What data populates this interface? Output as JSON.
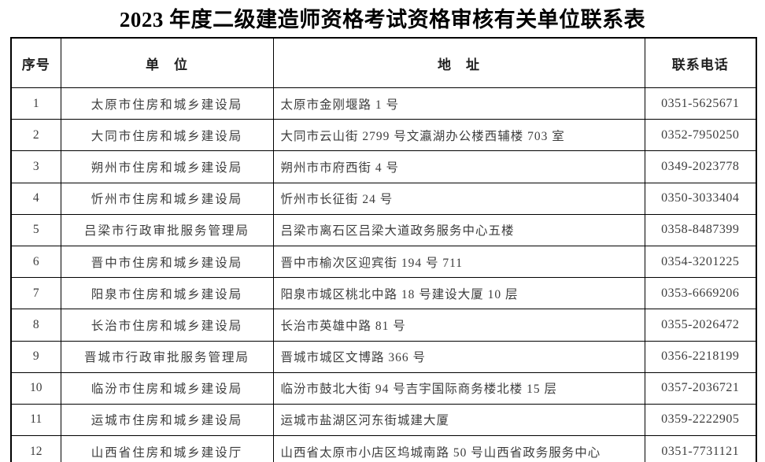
{
  "page": {
    "title": "2023 年度二级建造师资格考试资格审核有关单位联系表"
  },
  "table": {
    "headers": [
      "序号",
      "单　位",
      "地　址",
      "联系电话"
    ],
    "rows": [
      {
        "no": "1",
        "unit": "太原市住房和城乡建设局",
        "address": "太原市金刚堰路 1 号",
        "phone": "0351-5625671"
      },
      {
        "no": "2",
        "unit": "大同市住房和城乡建设局",
        "address": "大同市云山街 2799 号文瀛湖办公楼西辅楼 703 室",
        "phone": "0352-7950250"
      },
      {
        "no": "3",
        "unit": "朔州市住房和城乡建设局",
        "address": "朔州市市府西街 4 号",
        "phone": "0349-2023778"
      },
      {
        "no": "4",
        "unit": "忻州市住房和城乡建设局",
        "address": "忻州市长征街 24 号",
        "phone": "0350-3033404"
      },
      {
        "no": "5",
        "unit": "吕梁市行政审批服务管理局",
        "address": "吕梁市离石区吕梁大道政务服务中心五楼",
        "phone": "0358-8487399"
      },
      {
        "no": "6",
        "unit": "晋中市住房和城乡建设局",
        "address": "晋中市榆次区迎宾街 194 号 711",
        "phone": "0354-3201225"
      },
      {
        "no": "7",
        "unit": "阳泉市住房和城乡建设局",
        "address": "阳泉市城区桃北中路 18 号建设大厦 10 层",
        "phone": "0353-6669206"
      },
      {
        "no": "8",
        "unit": "长治市住房和城乡建设局",
        "address": "长治市英雄中路 81 号",
        "phone": "0355-2026472"
      },
      {
        "no": "9",
        "unit": "晋城市行政审批服务管理局",
        "address": "晋城市城区文博路 366 号",
        "phone": "0356-2218199"
      },
      {
        "no": "10",
        "unit": "临汾市住房和城乡建设局",
        "address": "临汾市鼓北大街 94 号吉宇国际商务楼北楼 15 层",
        "phone": "0357-2036721"
      },
      {
        "no": "11",
        "unit": "运城市住房和城乡建设局",
        "address": "运城市盐湖区河东街城建大厦",
        "phone": "0359-2222905"
      },
      {
        "no": "12",
        "unit": "山西省住房和城乡建设厅",
        "address": "山西省太原市小店区坞城南路 50 号山西省政务服务中心",
        "phone": "0351-7731121"
      }
    ]
  }
}
